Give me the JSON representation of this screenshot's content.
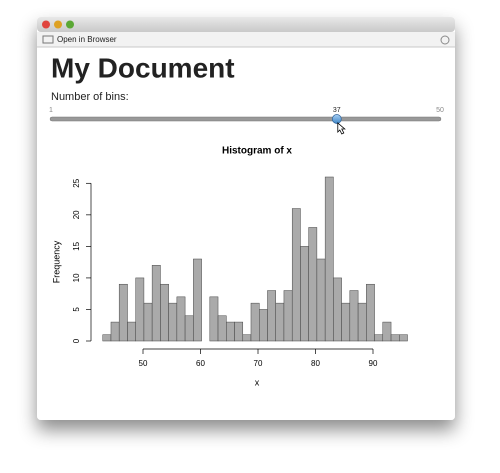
{
  "window": {
    "toolbar_button": "Open in Browser"
  },
  "header": {
    "title": "My Document"
  },
  "slider": {
    "label": "Number of bins:",
    "min": 1,
    "max": 50,
    "value": 37
  },
  "chart_data": {
    "type": "histogram",
    "title": "Histogram of x",
    "xlabel": "x",
    "ylabel": "Frequency",
    "bins": [
      43,
      44.43,
      45.86,
      47.3,
      48.73,
      50.16,
      51.59,
      53.03,
      54.46,
      55.89,
      57.32,
      58.76,
      60.19,
      61.62,
      63.05,
      64.49,
      65.92,
      67.35,
      68.78,
      70.22,
      71.65,
      73.08,
      74.51,
      75.95,
      77.38,
      78.81,
      80.24,
      81.68,
      83.11,
      84.54,
      85.97,
      87.41,
      88.84,
      90.27,
      91.7,
      93.14,
      94.57,
      96
    ],
    "counts": [
      1,
      3,
      9,
      3,
      10,
      6,
      12,
      9,
      6,
      7,
      4,
      13,
      0,
      7,
      4,
      3,
      3,
      1,
      6,
      5,
      8,
      6,
      8,
      21,
      15,
      18,
      13,
      26,
      10,
      6,
      8,
      6,
      9,
      1,
      3,
      1,
      1
    ],
    "color": "#aaaaaa",
    "xlim": [
      43,
      96
    ],
    "ylim": [
      0,
      26
    ],
    "xticks": [
      50,
      60,
      70,
      80,
      90
    ],
    "yticks": [
      0,
      5,
      10,
      15,
      20,
      25
    ]
  }
}
